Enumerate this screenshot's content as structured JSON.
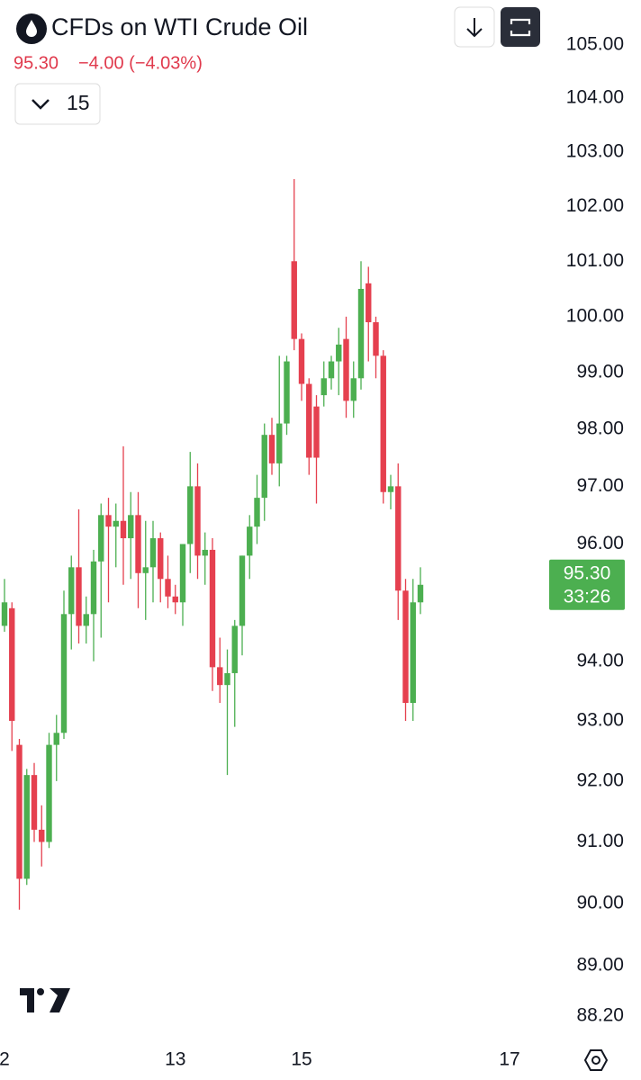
{
  "chart_data": {
    "type": "candlestick",
    "title": "CFDs on WTI Crude Oil",
    "last": "95.30",
    "change": "−4.00 (−4.03%)",
    "interval": "15",
    "log_scale": true,
    "up_color": "#4caf50",
    "down_color": "#e5404f",
    "categories": [
      "2",
      null,
      null,
      null,
      null,
      null,
      null,
      null,
      null,
      null,
      null,
      null,
      null,
      null,
      null,
      null,
      null,
      null,
      null,
      null,
      null,
      null,
      null,
      "13",
      null,
      null,
      null,
      null,
      null,
      null,
      null,
      null,
      null,
      null,
      null,
      null,
      null,
      null,
      null,
      null,
      "15",
      null,
      null,
      null,
      null,
      null,
      null,
      null,
      null,
      null,
      null,
      null,
      null,
      null,
      null,
      null,
      null,
      null,
      null,
      null,
      null,
      null,
      null,
      null,
      null,
      null,
      null,
      null,
      "17"
    ],
    "open": [
      94.6,
      94.9,
      92.6,
      90.4,
      92.1,
      91.2,
      91.0,
      92.6,
      92.8,
      94.8,
      95.6,
      94.6,
      94.8,
      95.7,
      96.5,
      96.3,
      96.4,
      96.1,
      96.5,
      95.5,
      95.6,
      96.1,
      95.4,
      95.1,
      95.0,
      96.0,
      97.0,
      95.8,
      95.9,
      93.9,
      93.6,
      93.8,
      94.6,
      95.8,
      96.3,
      96.8,
      97.9,
      97.4,
      98.1,
      101.0,
      99.6,
      98.8,
      98.4,
      98.6,
      98.9,
      99.2,
      99.6,
      98.5,
      98.9,
      100.6,
      99.9,
      99.3,
      96.9,
      97.0,
      95.2,
      93.3,
      95.0,
      null,
      null,
      null,
      null,
      null,
      null,
      null,
      null,
      null,
      null,
      null,
      null
    ],
    "high": [
      95.4,
      95.0,
      92.7,
      92.2,
      92.3,
      91.6,
      92.8,
      93.1,
      95.2,
      95.8,
      96.6,
      95.1,
      95.9,
      96.7,
      96.8,
      96.7,
      97.7,
      96.9,
      96.9,
      96.4,
      96.4,
      96.2,
      95.8,
      95.3,
      96.0,
      97.6,
      97.4,
      96.2,
      96.1,
      94.4,
      94.2,
      94.7,
      95.8,
      96.5,
      97.2,
      98.1,
      98.2,
      99.3,
      99.3,
      102.5,
      99.7,
      98.9,
      98.6,
      99.2,
      99.3,
      99.8,
      100.0,
      99.2,
      101.0,
      100.9,
      100.0,
      99.4,
      97.2,
      97.4,
      95.4,
      95.4,
      95.6,
      null,
      null,
      null,
      null,
      null,
      null,
      null,
      null,
      null,
      null,
      null,
      null
    ],
    "low": [
      94.5,
      92.5,
      89.9,
      90.3,
      91.0,
      90.6,
      90.9,
      92.0,
      92.7,
      94.2,
      94.3,
      94.3,
      94.0,
      94.4,
      95.0,
      95.6,
      95.3,
      95.4,
      94.9,
      94.7,
      95.0,
      95.0,
      94.9,
      94.8,
      94.6,
      95.5,
      95.4,
      95.3,
      93.5,
      93.3,
      92.1,
      92.9,
      94.1,
      95.4,
      96.0,
      96.4,
      97.2,
      97.0,
      97.9,
      99.4,
      98.5,
      97.2,
      96.7,
      98.4,
      98.7,
      98.6,
      98.2,
      98.2,
      98.7,
      99.2,
      98.9,
      96.7,
      96.6,
      94.7,
      93.0,
      93.0,
      94.8,
      null,
      null,
      null,
      null,
      null,
      null,
      null,
      null,
      null,
      null,
      null,
      null
    ],
    "close": [
      95.0,
      93.0,
      90.4,
      92.1,
      91.2,
      91.0,
      92.6,
      92.8,
      94.8,
      95.6,
      94.6,
      94.8,
      95.7,
      96.5,
      96.3,
      96.4,
      96.1,
      96.5,
      95.5,
      95.6,
      96.1,
      95.4,
      95.1,
      95.0,
      96.0,
      97.0,
      95.8,
      95.9,
      93.9,
      93.6,
      93.8,
      94.6,
      95.8,
      96.3,
      96.8,
      97.9,
      97.4,
      98.1,
      99.2,
      99.6,
      98.8,
      97.5,
      97.5,
      98.9,
      99.2,
      99.5,
      98.5,
      98.9,
      100.5,
      99.9,
      99.3,
      96.9,
      97.0,
      95.2,
      93.3,
      95.0,
      95.3,
      null,
      null,
      null,
      null,
      null,
      null,
      null,
      null,
      null,
      null,
      null,
      null
    ],
    "ylim": [
      87.9,
      105.85
    ],
    "yticks": [
      {
        "value": 88.2,
        "label": "88.20"
      },
      {
        "value": 89,
        "label": "89.00"
      },
      {
        "value": 90,
        "label": "90.00"
      },
      {
        "value": 91,
        "label": "91.00"
      },
      {
        "value": 92,
        "label": "92.00"
      },
      {
        "value": 93,
        "label": "93.00"
      },
      {
        "value": 94,
        "label": "94.00"
      },
      {
        "value": 96,
        "label": "96.00"
      },
      {
        "value": 97,
        "label": "97.00"
      },
      {
        "value": 98,
        "label": "98.00"
      },
      {
        "value": 99,
        "label": "99.00"
      },
      {
        "value": 100,
        "label": "100.00"
      },
      {
        "value": 101,
        "label": "101.00"
      },
      {
        "value": 102,
        "label": "102.00"
      },
      {
        "value": 103,
        "label": "103.00"
      },
      {
        "value": 104,
        "label": "104.00"
      },
      {
        "value": 105,
        "label": "105.00"
      }
    ],
    "price_label": {
      "value": 95.3,
      "label": "95.30",
      "countdown": "33:26"
    }
  }
}
